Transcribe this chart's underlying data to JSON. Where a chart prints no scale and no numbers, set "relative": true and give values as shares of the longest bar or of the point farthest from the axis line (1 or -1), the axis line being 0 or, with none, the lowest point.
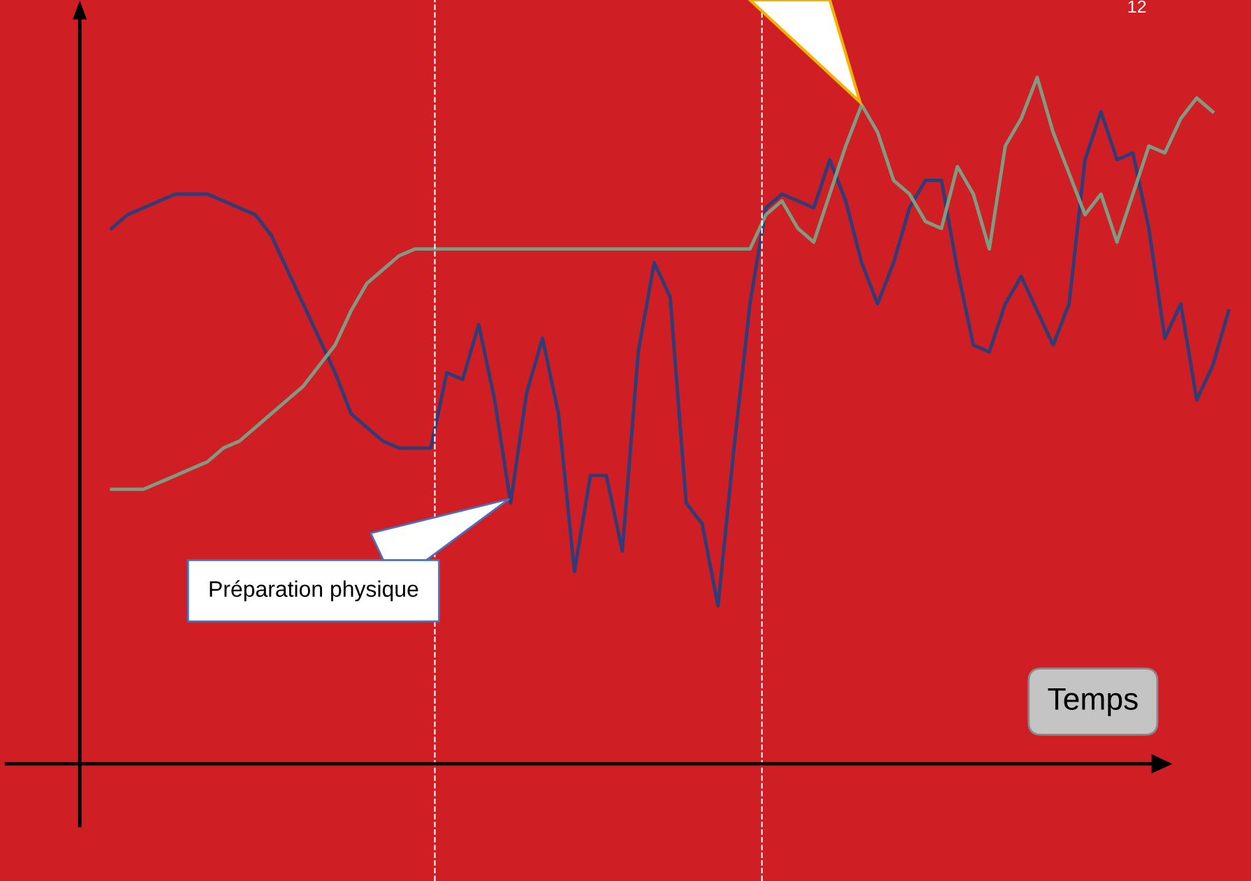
{
  "chart_data": {
    "type": "line",
    "relative": true,
    "xlabel": "Temps",
    "categories": [
      null,
      null,
      null,
      null,
      null,
      null,
      null,
      null,
      null,
      null,
      null,
      null,
      null,
      null,
      null,
      null,
      null,
      null,
      null,
      null,
      null,
      null,
      null,
      null,
      null,
      null,
      null,
      null,
      null,
      null,
      null,
      null,
      null,
      null,
      null,
      null,
      null,
      null,
      null,
      null,
      null,
      null,
      null,
      null,
      null,
      null,
      null,
      null,
      null,
      null,
      null,
      null,
      null,
      null,
      null,
      null,
      null,
      null,
      null,
      null,
      null,
      null,
      null,
      null,
      null,
      null,
      null,
      null,
      null,
      null,
      null
    ],
    "series": [
      {
        "color": "#2e3c78",
        "values": [
          0.78,
          0.8,
          0.81,
          0.82,
          0.83,
          0.83,
          0.83,
          0.82,
          0.81,
          0.8,
          0.77,
          0.72,
          0.67,
          0.62,
          0.57,
          0.51,
          0.49,
          0.47,
          0.46,
          0.46,
          0.46,
          0.57,
          0.56,
          0.64,
          0.53,
          0.38,
          0.54,
          0.62,
          0.51,
          0.28,
          0.42,
          0.42,
          0.31,
          0.6,
          0.73,
          0.68,
          0.38,
          0.35,
          0.23,
          0.46,
          0.67,
          0.81,
          0.83,
          0.82,
          0.81,
          0.88,
          0.82,
          0.73,
          0.67,
          0.73,
          0.81,
          0.85,
          0.85,
          0.72,
          0.61,
          0.6,
          0.67,
          0.71,
          0.66,
          0.61,
          0.67,
          0.88,
          0.95,
          0.88,
          0.89,
          0.78,
          0.62,
          0.67,
          0.53,
          0.58,
          0.66
        ]
      },
      {
        "color": "#7f9c82",
        "values": [
          0.4,
          0.4,
          0.4,
          0.41,
          0.42,
          0.43,
          0.44,
          0.46,
          0.47,
          0.49,
          0.51,
          0.53,
          0.55,
          0.58,
          0.61,
          0.66,
          0.7,
          0.72,
          0.74,
          0.75,
          0.75,
          0.75,
          0.75,
          0.75,
          0.75,
          0.75,
          0.75,
          0.75,
          0.75,
          0.75,
          0.75,
          0.75,
          0.75,
          0.75,
          0.75,
          0.75,
          0.75,
          0.75,
          0.75,
          0.75,
          0.75,
          0.8,
          0.82,
          0.78,
          0.76,
          0.83,
          0.9,
          0.96,
          0.92,
          0.85,
          0.83,
          0.79,
          0.78,
          0.87,
          0.83,
          0.75,
          0.9,
          0.94,
          1.0,
          0.92,
          0.86,
          0.8,
          0.83,
          0.76,
          0.83,
          0.9,
          0.89,
          0.94,
          0.97,
          0.95,
          null
        ]
      }
    ],
    "annotations": [
      "Préparation physique",
      "12"
    ],
    "legend": false,
    "marker": "none",
    "line_style": "solid"
  }
}
